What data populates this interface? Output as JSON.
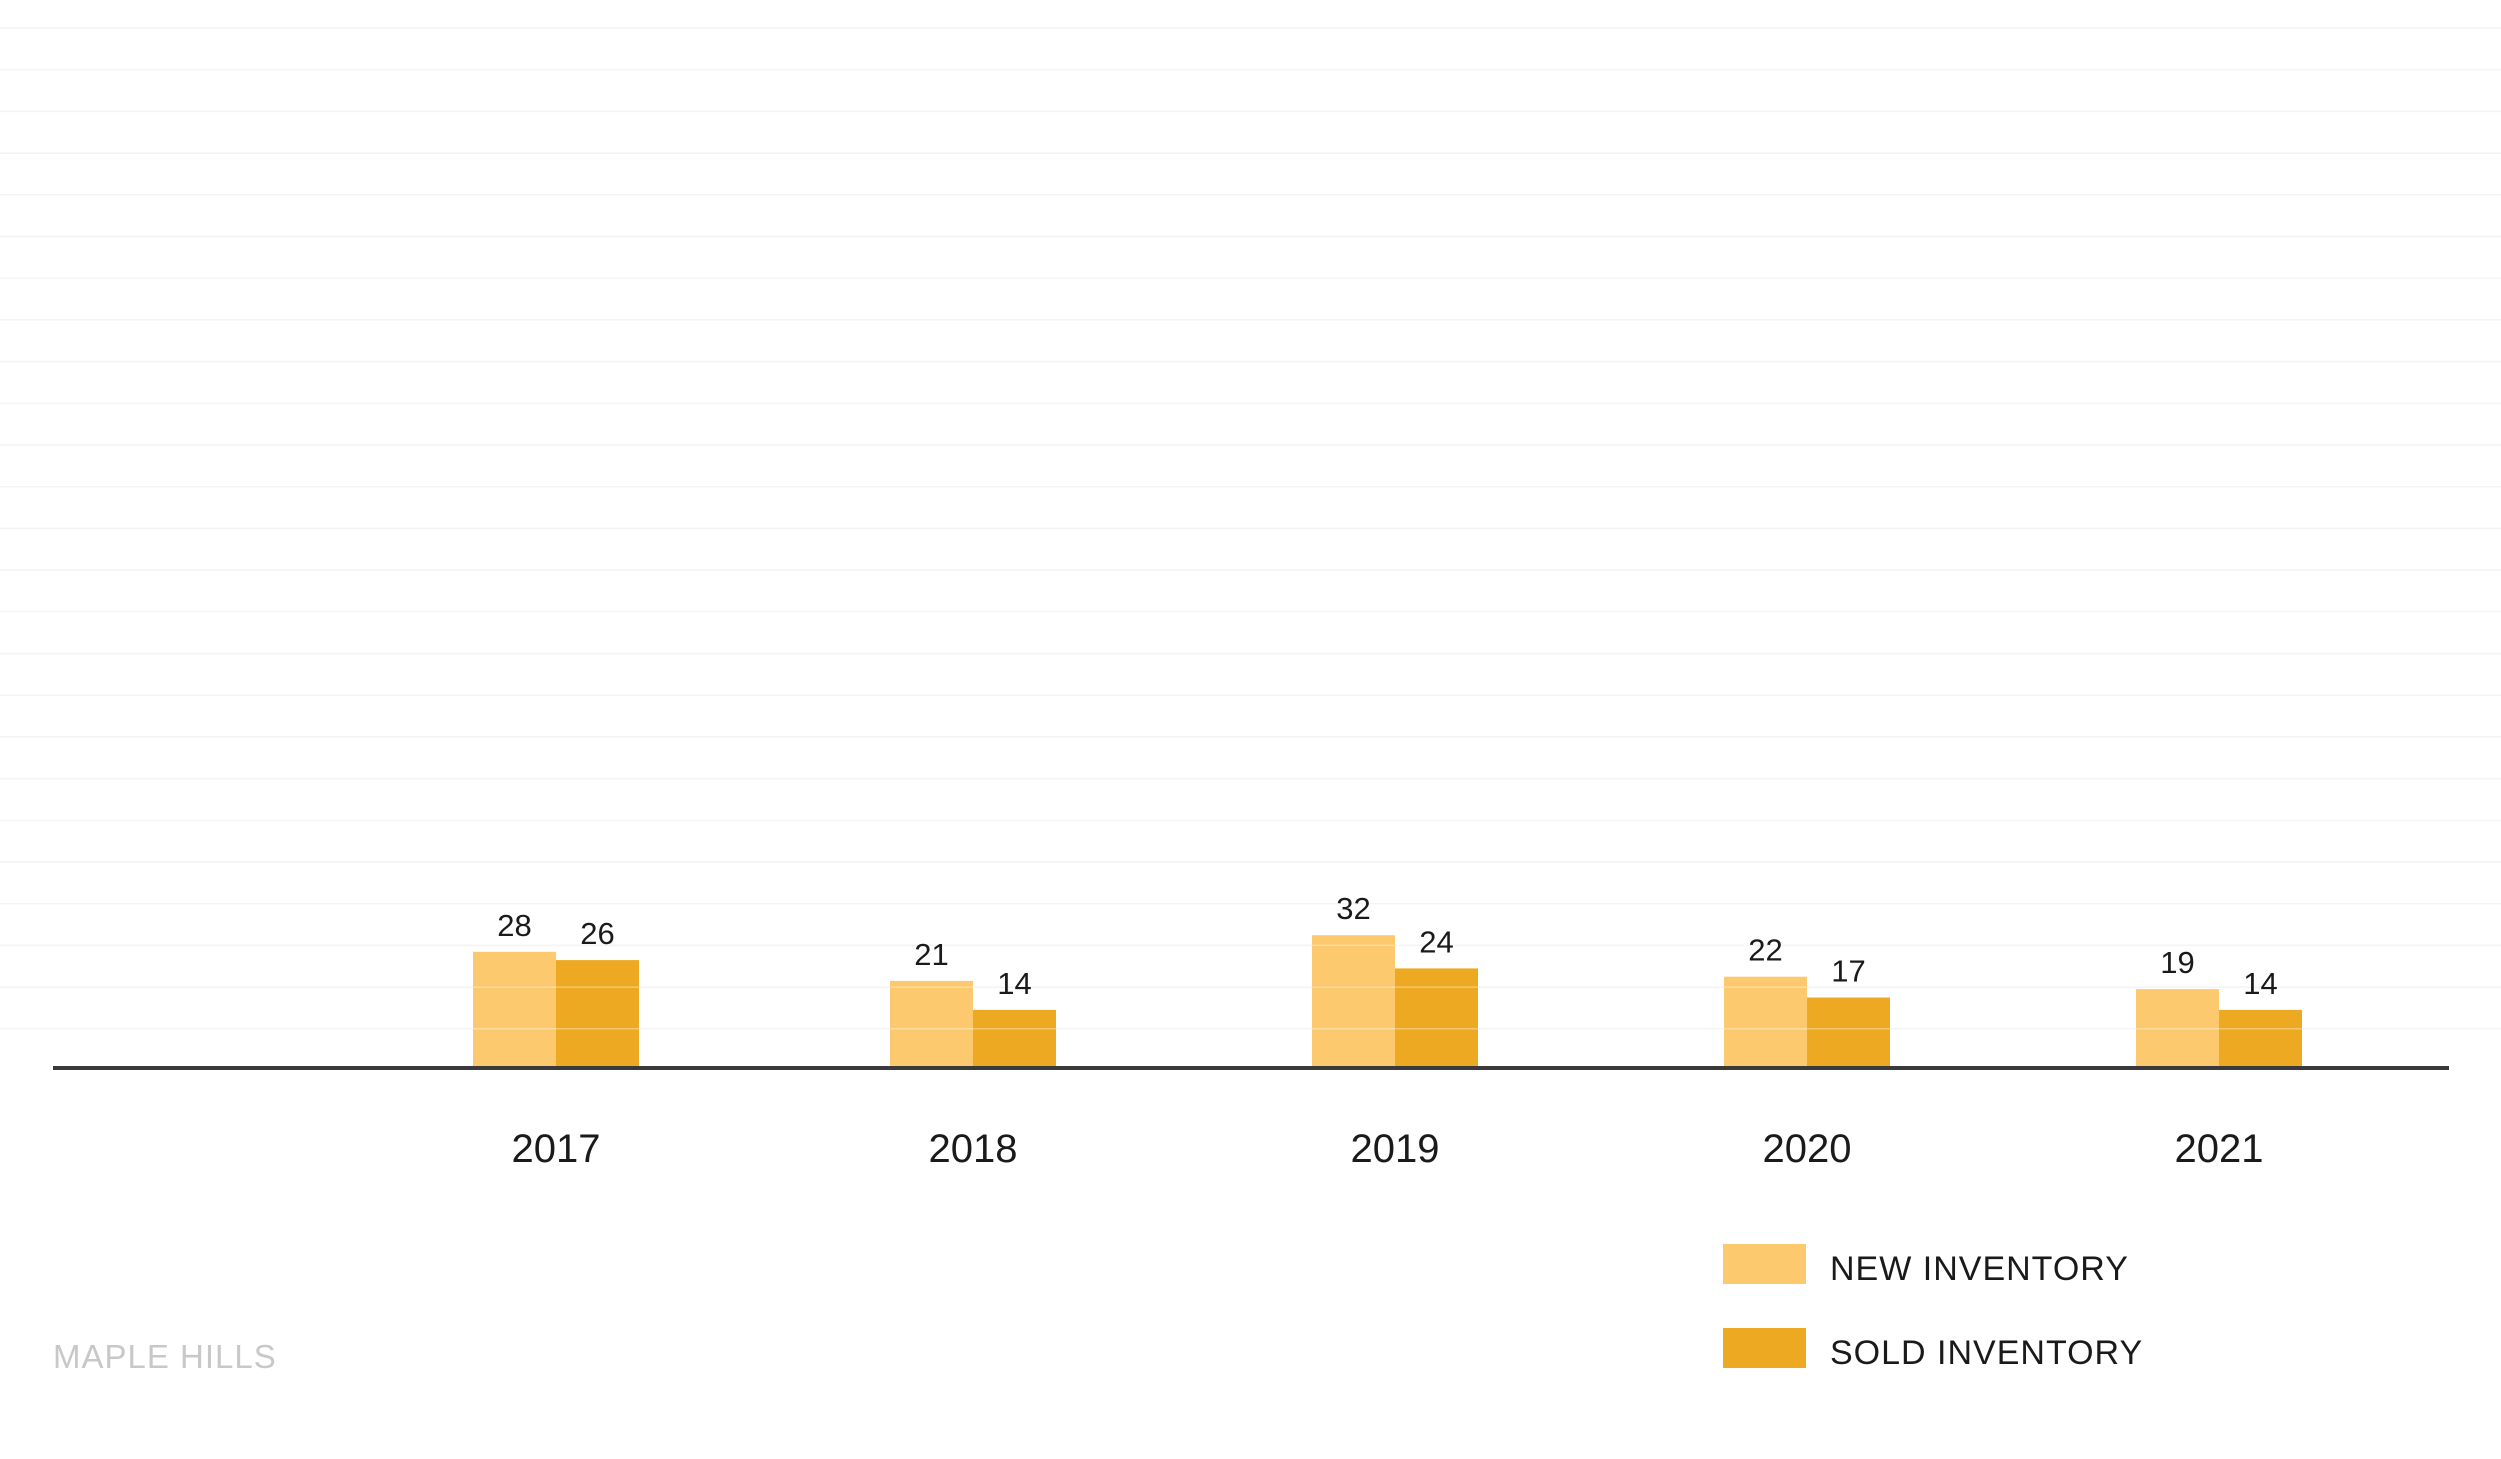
{
  "chart_data": {
    "type": "bar",
    "title": "",
    "xlabel": "",
    "ylabel": "",
    "categories": [
      "2017",
      "2018",
      "2019",
      "2020",
      "2021"
    ],
    "series": [
      {
        "name": "NEW INVENTORY",
        "values": [
          28,
          21,
          32,
          22,
          19
        ],
        "color": "#fdc96e"
      },
      {
        "name": "SOLD INVENTORY",
        "values": [
          26,
          14,
          24,
          17,
          14
        ],
        "color": "#eca921"
      }
    ],
    "ylim": [
      0,
      260
    ],
    "grid": true,
    "legend_position": "bottom-right",
    "data_labels": true
  },
  "colors": {
    "grid": "#eeeeee",
    "axis": "#3a3a3a",
    "text": "#1a1a1a",
    "brand": "#c8c8c8"
  },
  "legend": {
    "items": [
      {
        "label": "NEW INVENTORY",
        "color": "#fdc96e"
      },
      {
        "label": "SOLD INVENTORY",
        "color": "#eca921"
      }
    ]
  },
  "brand": {
    "text": "MAPLE HILLS"
  }
}
